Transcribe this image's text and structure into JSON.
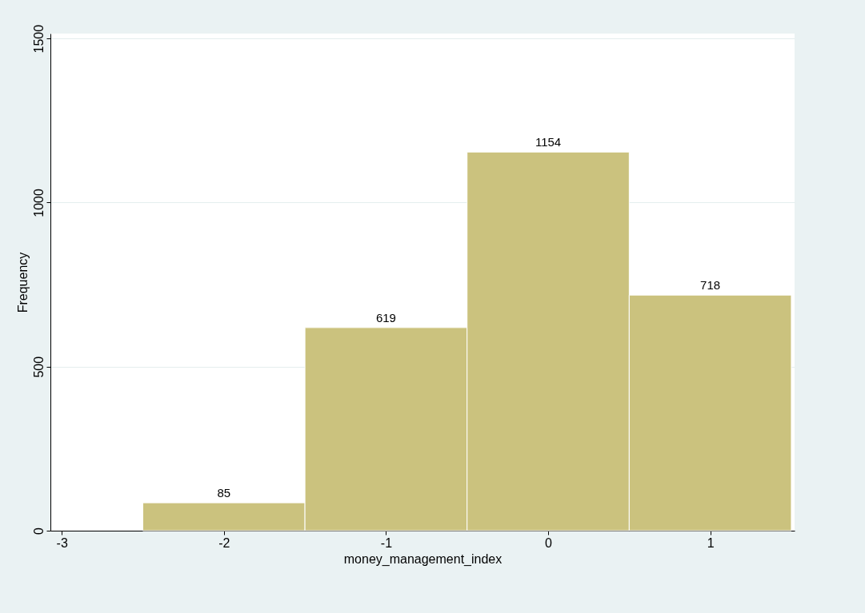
{
  "chart_data": {
    "type": "histogram",
    "xlabel": "money_management_index",
    "ylabel": "Frequency",
    "bins": [
      -2.5,
      -1.5,
      -0.5,
      0.5,
      1.5
    ],
    "values": [
      85,
      619,
      1154,
      718
    ],
    "color": "#cbc27e",
    "xlim": [
      -3.07,
      1.52
    ],
    "xticks": [
      -3,
      -2,
      -1,
      0,
      1
    ],
    "ylim": [
      0,
      1515
    ],
    "yticks": [
      0,
      500,
      1000,
      1500
    ],
    "grid": "y",
    "data_labels": true
  }
}
